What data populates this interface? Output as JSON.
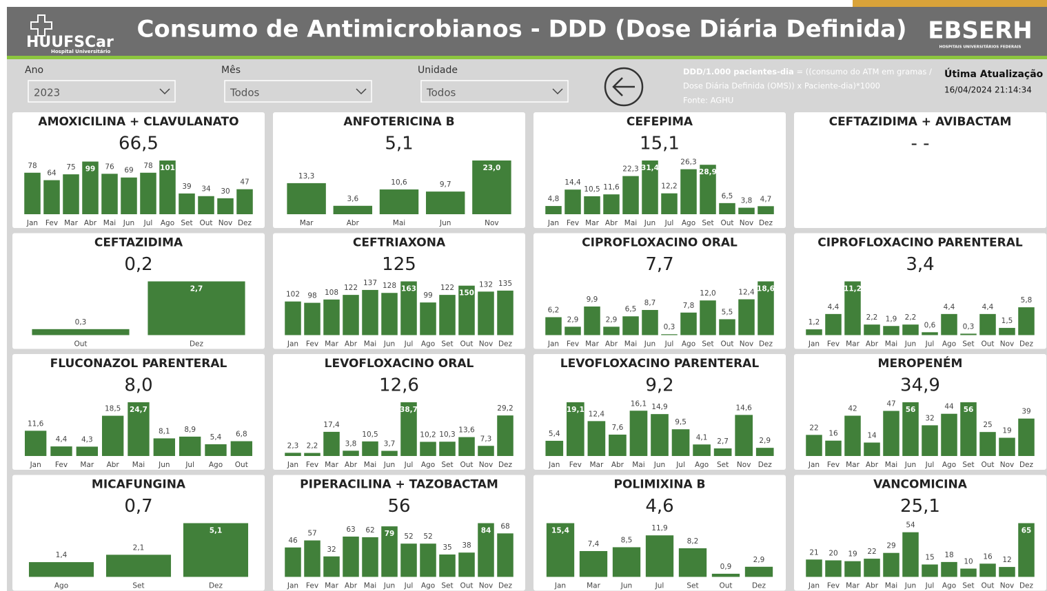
{
  "header": {
    "title": "Consumo de Antimicrobianos - DDD (Dose Diária Definida)",
    "logo_left": "HUUFSCar",
    "logo_left_sub": "Hospital Universitário",
    "logo_right": "EBSERH",
    "logo_right_sub": "HOSPITAIS UNIVERSITÁRIOS FEDERAIS"
  },
  "filters": [
    {
      "label": "Ano",
      "value": "2023"
    },
    {
      "label": "Mês",
      "value": "Todos"
    },
    {
      "label": "Unidade",
      "value": "Todos"
    }
  ],
  "note": {
    "term": "DDD/1.000 pacientes-dia",
    "line1": " = ((consumo do ATM em gramas /",
    "line2": "Dose Diária Definida (OMS)) x Paciente-dia)*1000",
    "source": "Fonte: AGHU"
  },
  "update": {
    "label": "Útima Atualização",
    "value": "16/04/2024 21:14:34"
  },
  "chart_data": [
    {
      "type": "bar",
      "title": "AMOXICILINA + CLAVULANATO",
      "kpi": "66,5",
      "color": "#41803a",
      "categories": [
        "Jan",
        "Fev",
        "Mar",
        "Abr",
        "Mai",
        "Jun",
        "Jul",
        "Ago",
        "Set",
        "Out",
        "Nov",
        "Dez"
      ],
      "values": [
        78,
        64,
        75,
        99,
        76,
        69,
        78,
        101,
        39,
        34,
        30,
        47
      ]
    },
    {
      "type": "bar",
      "title": "ANFOTERICINA B",
      "kpi": "5,1",
      "color": "#41803a",
      "categories": [
        "Mar",
        "Abr",
        "Mai",
        "Jun",
        "Nov"
      ],
      "values": [
        13.3,
        3.6,
        10.6,
        9.7,
        23.0
      ],
      "value_labels": [
        "13,3",
        "3,6",
        "10,6",
        "9,7",
        "23,0"
      ]
    },
    {
      "type": "bar",
      "title": "CEFEPIMA",
      "kpi": "15,1",
      "color": "#41803a",
      "categories": [
        "Jan",
        "Fev",
        "Mar",
        "Abr",
        "Mai",
        "Jun",
        "Jul",
        "Ago",
        "Set",
        "Out",
        "Nov",
        "Dez"
      ],
      "values": [
        4.8,
        14.4,
        10.5,
        11.6,
        22.3,
        31.4,
        12.2,
        26.3,
        28.9,
        6.5,
        3.8,
        4.7
      ],
      "value_labels": [
        "4,8",
        "14,4",
        "10,5",
        "11,6",
        "22,3",
        "31,4",
        "12,2",
        "26,3",
        "28,9",
        "6,5",
        "3,8",
        "4,7"
      ]
    },
    {
      "type": "bar",
      "title": "CEFTAZIDIMA + AVIBACTAM",
      "kpi": "- -",
      "color": "#41803a",
      "categories": [],
      "values": []
    },
    {
      "type": "bar",
      "title": "CEFTAZIDIMA",
      "kpi": "0,2",
      "color": "#41803a",
      "categories": [
        "Out",
        "Dez"
      ],
      "values": [
        0.3,
        2.7
      ],
      "value_labels": [
        "0,3",
        "2,7"
      ]
    },
    {
      "type": "bar",
      "title": "CEFTRIAXONA",
      "kpi": "125",
      "color": "#41803a",
      "categories": [
        "Jan",
        "Fev",
        "Mar",
        "Abr",
        "Mai",
        "Jun",
        "Jul",
        "Ago",
        "Set",
        "Out",
        "Nov",
        "Dez"
      ],
      "values": [
        102,
        98,
        108,
        122,
        137,
        128,
        163,
        99,
        122,
        150,
        132,
        135
      ]
    },
    {
      "type": "bar",
      "title": "CIPROFLOXACINO ORAL",
      "kpi": "7,7",
      "color": "#41803a",
      "categories": [
        "Jan",
        "Fev",
        "Mar",
        "Abr",
        "Mai",
        "Jun",
        "Jul",
        "Ago",
        "Set",
        "Out",
        "Nov",
        "Dez"
      ],
      "values": [
        6.2,
        2.9,
        9.9,
        2.9,
        6.5,
        8.7,
        0.3,
        7.8,
        12.0,
        5.5,
        12.4,
        18.6
      ],
      "value_labels": [
        "6,2",
        "2,9",
        "9,9",
        "2,9",
        "6,5",
        "8,7",
        "0,3",
        "7,8",
        "12,0",
        "5,5",
        "12,4",
        "18,6"
      ]
    },
    {
      "type": "bar",
      "title": "CIPROFLOXACINO PARENTERAL",
      "kpi": "3,4",
      "color": "#41803a",
      "categories": [
        "Jan",
        "Fev",
        "Mar",
        "Abr",
        "Mai",
        "Jun",
        "Jul",
        "Ago",
        "Set",
        "Out",
        "Nov",
        "Dez"
      ],
      "values": [
        1.2,
        4.4,
        11.2,
        2.2,
        1.9,
        2.2,
        0.6,
        4.4,
        0.3,
        4.4,
        1.5,
        5.8
      ],
      "value_labels": [
        "1,2",
        "4,4",
        "11,2",
        "2,2",
        "1,9",
        "2,2",
        "0,6",
        "4,4",
        "0,3",
        "4,4",
        "1,5",
        "5,8"
      ]
    },
    {
      "type": "bar",
      "title": "FLUCONAZOL PARENTERAL",
      "kpi": "8,0",
      "color": "#41803a",
      "categories": [
        "Jan",
        "Fev",
        "Mar",
        "Abr",
        "Mai",
        "Jun",
        "Jul",
        "Ago",
        "Out"
      ],
      "values": [
        11.6,
        4.4,
        4.3,
        18.5,
        24.7,
        8.1,
        8.9,
        5.4,
        6.8
      ],
      "value_labels": [
        "11,6",
        "4,4",
        "4,3",
        "18,5",
        "24,7",
        "8,1",
        "8,9",
        "5,4",
        "6,8"
      ]
    },
    {
      "type": "bar",
      "title": "LEVOFLOXACINO ORAL",
      "kpi": "12,6",
      "color": "#41803a",
      "categories": [
        "Jan",
        "Fev",
        "Mar",
        "Abr",
        "Mai",
        "Jun",
        "Jul",
        "Ago",
        "Set",
        "Out",
        "Nov",
        "Dez"
      ],
      "values": [
        2.3,
        2.2,
        17.4,
        3.8,
        10.5,
        3.7,
        38.7,
        10.2,
        10.3,
        13.6,
        7.3,
        29.2
      ],
      "value_labels": [
        "2,3",
        "2,2",
        "17,4",
        "3,8",
        "10,5",
        "3,7",
        "38,7",
        "10,2",
        "10,3",
        "13,6",
        "7,3",
        "29,2"
      ]
    },
    {
      "type": "bar",
      "title": "LEVOFLOXACINO PARENTERAL",
      "kpi": "9,2",
      "color": "#41803a",
      "categories": [
        "Jan",
        "Fev",
        "Mar",
        "Abr",
        "Mai",
        "Jun",
        "Jul",
        "Ago",
        "Set",
        "Nov",
        "Dez"
      ],
      "values": [
        5.4,
        19.1,
        12.4,
        7.6,
        16.1,
        14.9,
        9.5,
        4.1,
        2.7,
        14.6,
        2.9
      ],
      "value_labels": [
        "5,4",
        "19,1",
        "12,4",
        "7,6",
        "16,1",
        "14,9",
        "9,5",
        "4,1",
        "2,7",
        "14,6",
        "2,9"
      ]
    },
    {
      "type": "bar",
      "title": "MEROPENÉM",
      "kpi": "34,9",
      "color": "#41803a",
      "categories": [
        "Jan",
        "Fev",
        "Mar",
        "Abr",
        "Mai",
        "Jun",
        "Jul",
        "Ago",
        "Set",
        "Out",
        "Nov",
        "Dez"
      ],
      "values": [
        22,
        16,
        42,
        14,
        47,
        56,
        32,
        44,
        56,
        25,
        19,
        39
      ]
    },
    {
      "type": "bar",
      "title": "MICAFUNGINA",
      "kpi": "0,7",
      "color": "#41803a",
      "categories": [
        "Ago",
        "Set",
        "Dez"
      ],
      "values": [
        1.4,
        2.1,
        5.1
      ],
      "value_labels": [
        "1,4",
        "2,1",
        "5,1"
      ]
    },
    {
      "type": "bar",
      "title": "PIPERACILINA + TAZOBACTAM",
      "kpi": "56",
      "color": "#41803a",
      "categories": [
        "Jan",
        "Fev",
        "Mar",
        "Abr",
        "Mai",
        "Jun",
        "Jul",
        "Ago",
        "Set",
        "Out",
        "Nov",
        "Dez"
      ],
      "values": [
        46,
        57,
        32,
        63,
        62,
        79,
        52,
        52,
        35,
        38,
        84,
        68
      ]
    },
    {
      "type": "bar",
      "title": "POLIMIXINA B",
      "kpi": "4,6",
      "color": "#41803a",
      "categories": [
        "Jan",
        "Mar",
        "Jun",
        "Jul",
        "Set",
        "Out",
        "Dez"
      ],
      "values": [
        15.4,
        7.4,
        8.5,
        11.9,
        8.2,
        0.9,
        2.9
      ],
      "value_labels": [
        "15,4",
        "7,4",
        "8,5",
        "11,9",
        "8,2",
        "0,9",
        "2,9"
      ]
    },
    {
      "type": "bar",
      "title": "VANCOMICINA",
      "kpi": "25,1",
      "color": "#41803a",
      "categories": [
        "Jan",
        "Fev",
        "Mar",
        "Abr",
        "Mai",
        "Jun",
        "Jul",
        "Ago",
        "Set",
        "Out",
        "Nov",
        "Dez"
      ],
      "values": [
        21,
        20,
        19,
        22,
        29,
        54,
        15,
        18,
        10,
        16,
        12,
        65
      ]
    }
  ]
}
